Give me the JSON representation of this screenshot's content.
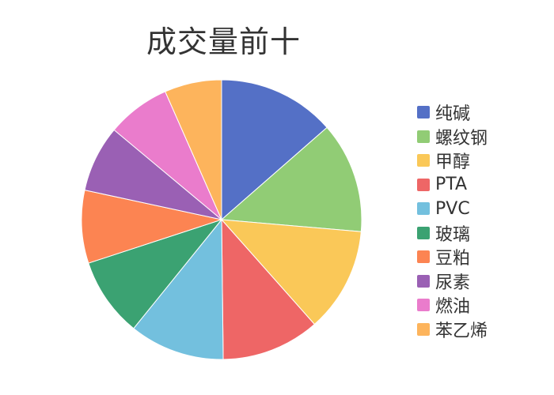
{
  "chart_data": {
    "type": "pie",
    "title": "成交量前十",
    "legend_position": "right",
    "categories": [
      "纯碱",
      "螺纹钢",
      "甲醇",
      "PTA",
      "PVC",
      "玻璃",
      "豆粕",
      "尿素",
      "燃油",
      "苯乙烯"
    ],
    "values": [
      37,
      35,
      33,
      31,
      30,
      25,
      23,
      21,
      20,
      18
    ],
    "colors": [
      "#5470c6",
      "#91cc75",
      "#fac858",
      "#ee6666",
      "#73c0de",
      "#3ba272",
      "#fc8452",
      "#9a60b4",
      "#ea7ccc",
      "#fdb45c"
    ]
  }
}
